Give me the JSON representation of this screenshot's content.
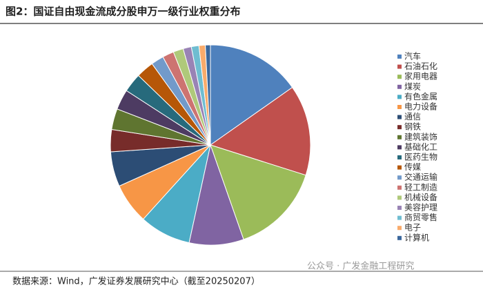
{
  "chart_data": {
    "type": "pie",
    "title": "图2：国证自由现金流成分股申万一级行业权重分布",
    "categories": [
      "汽车",
      "石油石化",
      "家用电器",
      "煤炭",
      "有色金属",
      "电力设备",
      "通信",
      "钢铁",
      "建筑装饰",
      "基础化工",
      "医药生物",
      "传媒",
      "交通运输",
      "轻工制造",
      "机械设备",
      "美容护理",
      "商贸零售",
      "电子",
      "计算机"
    ],
    "values": [
      14.9,
      14.3,
      14.4,
      8.6,
      8.1,
      6.4,
      5.5,
      3.5,
      3.3,
      3.2,
      3.0,
      2.8,
      2.0,
      1.8,
      1.6,
      1.3,
      1.2,
      1.0,
      0.8
    ],
    "colors": [
      "#4f81bd",
      "#c0504d",
      "#9bbb59",
      "#8064a2",
      "#4bacc6",
      "#f79646",
      "#2c4d75",
      "#772c2a",
      "#5f7530",
      "#4d3b62",
      "#276a7c",
      "#b65708",
      "#729aca",
      "#cd7371",
      "#afc97a",
      "#9983b5",
      "#6fbdd1",
      "#f9ab6b",
      "#3a679c"
    ],
    "legend": "right"
  },
  "source": "数据来源：Wind，广发证券发展研究中心（截至20250207）",
  "watermark": "公众号 · 广发金融工程研究"
}
